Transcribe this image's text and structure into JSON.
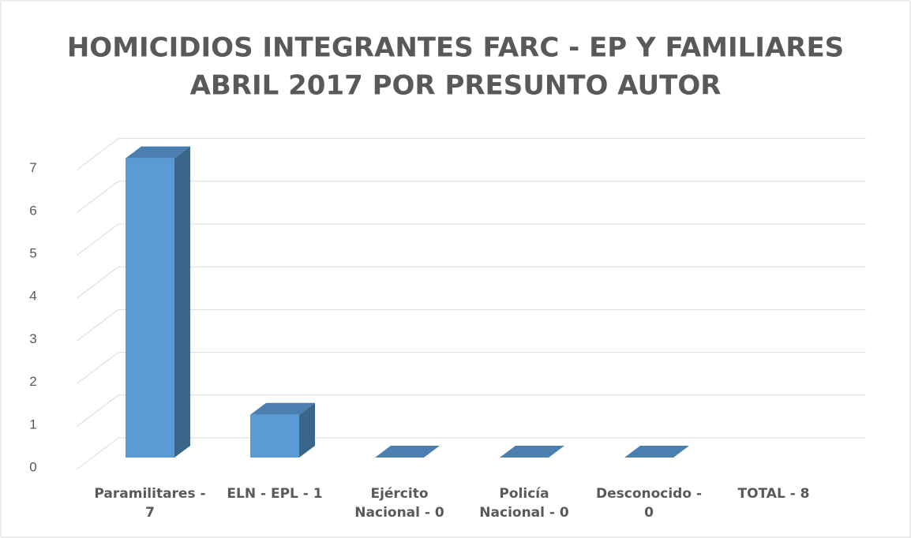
{
  "chart_data": {
    "type": "bar3d",
    "title": [
      "HOMICIDIOS INTEGRANTES FARC - EP Y FAMILIARES",
      "ABRIL 2017 POR PRESUNTO AUTOR"
    ],
    "categories": [
      "Paramilitares - 7",
      "ELN - EPL - 1",
      "Ejército Nacional - 0",
      "Policía Nacional - 0",
      "Desconocido - 0",
      "TOTAL - 8"
    ],
    "values": [
      7,
      1,
      0,
      0,
      0,
      null
    ],
    "color": "#5b9bd5",
    "ylim": [
      0,
      7
    ],
    "yticks": [
      0,
      1,
      2,
      3,
      4,
      5,
      6,
      7
    ],
    "grid": true
  }
}
